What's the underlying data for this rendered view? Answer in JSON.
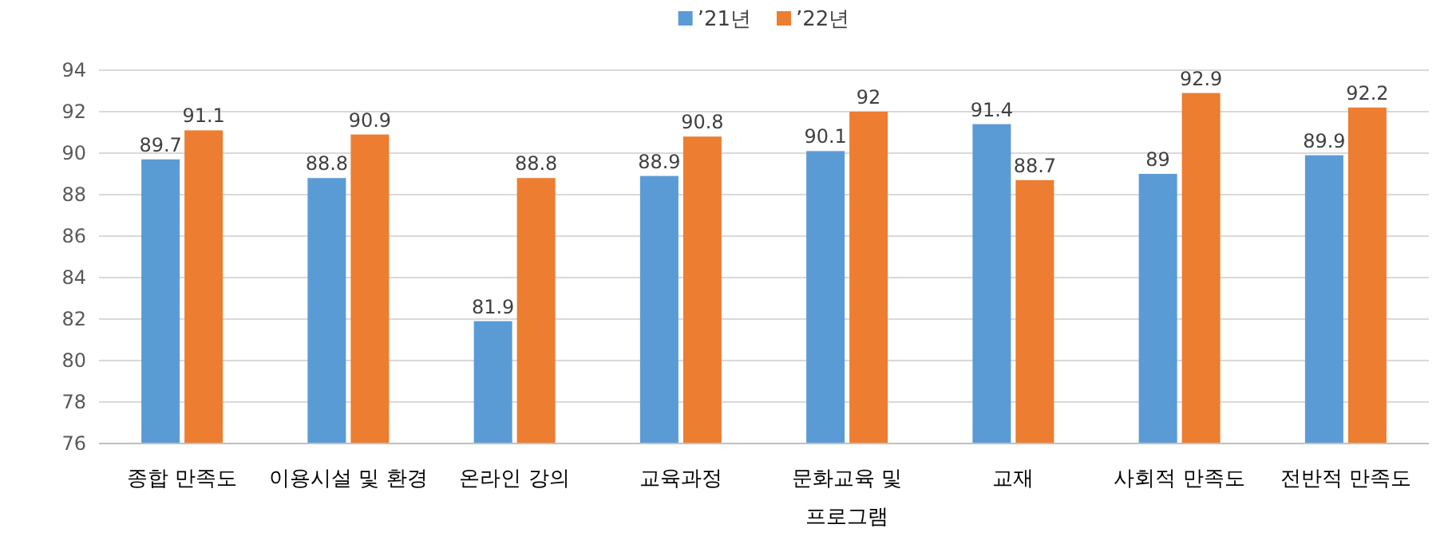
{
  "chart_data": {
    "type": "bar",
    "categories": [
      "종합 만족도",
      "이용시설 및 환경",
      "온라인 강의",
      "교육과정",
      "문화교육 및 프로그램",
      "교재",
      "사회적 만족도",
      "전반적 만족도"
    ],
    "series": [
      {
        "name": "’21년",
        "color": "#5b9bd5",
        "values": [
          89.7,
          88.8,
          81.9,
          88.9,
          90.1,
          91.4,
          89,
          89.9
        ]
      },
      {
        "name": "’22년",
        "color": "#ed7d31",
        "values": [
          91.1,
          90.9,
          88.8,
          90.8,
          92,
          88.7,
          92.9,
          92.2
        ]
      }
    ],
    "ylim": [
      76,
      94
    ],
    "yticks": [
      76,
      78,
      80,
      82,
      84,
      86,
      88,
      90,
      92,
      94
    ],
    "grid": "y",
    "legend": "top",
    "data_labels": true
  }
}
